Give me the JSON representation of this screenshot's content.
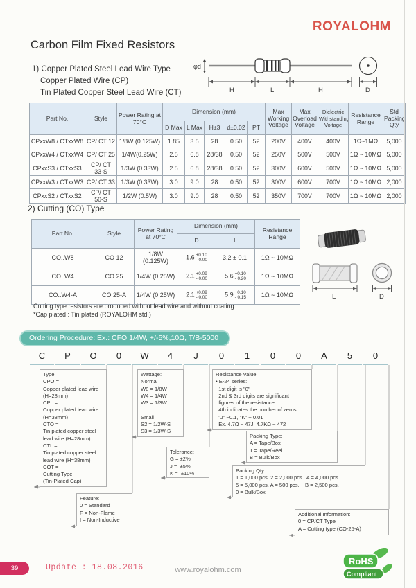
{
  "brand": {
    "logo": "ROYALOHM"
  },
  "page": {
    "title": "Carbon Film Fixed Resistors"
  },
  "section1": {
    "heading_line1": "1) Copper Plated Steel Lead Wire Type",
    "heading_line2": "Copper Plated Wire (CP)",
    "heading_line3": "Tin Plated Copper Steel Lead Wire (CT)",
    "diagram_labels": {
      "phi_d": "φd",
      "h_left": "H",
      "l": "L",
      "h_right": "H",
      "d": "D"
    }
  },
  "table1": {
    "headers": {
      "part": "Part No.",
      "style": "Style",
      "power": "Power Rating at 70°C",
      "dimension": "Dimension (mm)",
      "sub": [
        "D Max",
        "L Max",
        "H±3",
        "d±0.02",
        "PT"
      ],
      "max_working": "Max Working Voltage",
      "max_overload": "Max Overload Voltage",
      "dielectric": "Dielectric Withstanding Voltage",
      "resistance": "Resistance Range",
      "std_packing": "Std Packing Qty"
    },
    "rows": [
      [
        "CPxxW8 / CTxxW8",
        "CP/ CT 12",
        "1/8W (0.125W)",
        "1.85",
        "3.5",
        "28",
        "0.50",
        "52",
        "200V",
        "400V",
        "400V",
        "1Ω~1MΩ",
        "5,000"
      ],
      [
        "CPxxW4 / CTxxW4",
        "CP/ CT 25",
        "1/4W(0.25W)",
        "2.5",
        "6.8",
        "28/38",
        "0.50",
        "52",
        "250V",
        "500V",
        "500V",
        "1Ω ~ 10MΩ",
        "5,000"
      ],
      [
        "CPxxS3 / CTxxS3",
        "CP/ CT 33-S",
        "1/3W (0.33W)",
        "2.5",
        "6.8",
        "28/38",
        "0.50",
        "52",
        "300V",
        "600V",
        "500V",
        "1Ω ~ 10MΩ",
        "5,000"
      ],
      [
        "CPxxW3 / CTxxW3",
        "CP/ CT 33",
        "1/3W (0.33W)",
        "3.0",
        "9.0",
        "28",
        "0.50",
        "52",
        "300V",
        "600V",
        "700V",
        "1Ω ~ 10MΩ",
        "2,000"
      ],
      [
        "CPxxS2 / CTxxS2",
        "CP/ CT 50-S",
        "1/2W (0.5W)",
        "3.0",
        "9.0",
        "28",
        "0.50",
        "52",
        "350V",
        "700V",
        "700V",
        "1Ω ~ 10MΩ",
        "2,000"
      ]
    ]
  },
  "section2": {
    "heading": "2) Cutting (CO) Type",
    "notes": [
      "Cutting type resistors are produced without lead wire and without coating",
      "*Cap plated : Tin plated (ROYALOHM std.)"
    ],
    "drawing_labels": {
      "l": "L",
      "d": "D"
    }
  },
  "table2": {
    "headers": {
      "part": "Part No.",
      "style": "Style",
      "power": "Power Rating at 70°C",
      "dimension": "Dimension (mm)",
      "d": "D",
      "l": "L",
      "resistance": "Resistance Range"
    },
    "rows": [
      {
        "part": "CO..W8",
        "style": "CO 12",
        "power": "1/8W (0.125W)",
        "d_v": "1.6",
        "d_plus": "+0.10",
        "d_minus": "- 0.00",
        "l_v": "3.2 ± 0.1",
        "l_plus": "",
        "l_minus": "",
        "range": "1Ω ~ 10MΩ"
      },
      {
        "part": "CO..W4",
        "style": "CO 25",
        "power": "1/4W (0.25W)",
        "d_v": "2.1",
        "d_plus": "+0.09",
        "d_minus": "- 0.00",
        "l_v": "5.6",
        "l_plus": "+0.10",
        "l_minus": "- 0.20",
        "range": "1Ω ~ 10MΩ"
      },
      {
        "part": "CO..W4-A",
        "style": "CO 25-A",
        "power": "1/4W (0.25W)",
        "d_v": "2.1",
        "d_plus": "+0.09",
        "d_minus": "- 0.00",
        "l_v": "5.9",
        "l_plus": "+0.10",
        "l_minus": "- 0.15",
        "range": "1Ω ~ 10MΩ"
      }
    ]
  },
  "ordering": {
    "banner": "Ordering Procedure: Ex.: CFO 1/4W, +/-5%,10Ω, T/B-5000",
    "code": [
      "C",
      "P",
      "O",
      "0",
      "W",
      "4",
      "J",
      "0",
      "1",
      "0",
      "0",
      "A",
      "5",
      "0"
    ],
    "boxes": {
      "type_box": {
        "title": "Type:",
        "lines": [
          "CPO =",
          "Copper plated lead wire",
          "(H=28mm)",
          "CPL =",
          "Copper plated lead wire",
          "(H=38mm)",
          "CTO =",
          "Tin plated copper steel",
          "lead wire (H=28mm)",
          "CTL =",
          "Tin plated copper steel",
          "lead wire (H=38mm)",
          "COT =",
          "Cutting Type",
          "(Tin-Plated Cap)"
        ]
      },
      "wattage_box": {
        "title": "Wattage:",
        "lines": [
          "Normal",
          "W8 = 1/8W",
          "W4 = 1/4W",
          "W3 = 1/3W",
          " ",
          "Small",
          "S2 = 1/2W-S",
          "S3 = 1/3W-S"
        ]
      },
      "tolerance_box": {
        "title": "Tolerance:",
        "lines": [
          "G = ±2%",
          "J =  ±5%",
          "K =  ±10%"
        ]
      },
      "resistance_box": {
        "title": "Resistance Value:",
        "lines": [
          "• E-24 series:",
          "  1st digit is \"0\"",
          "  2nd & 3rd digits are significant",
          "  figures of the resistance",
          "  4th indicates the number of zeros",
          "  \"J\" ~0.1, \"K\" ~ 0.01",
          "  Ex. 4.7Ω ~ 47J, 4.7KΩ ~ 472"
        ]
      },
      "packing_type_box": {
        "title": "Packing Type:",
        "lines": [
          "A = Tape/Box",
          "T = Tape/Reel",
          "B = Bulk/Box"
        ]
      },
      "packing_qty_box": {
        "title": "Packing Qty:",
        "lines": [
          "1 = 1,000 pcs. 2 = 2,000 pcs.  4 = 4,000 pcs.",
          "5 = 5,000 pcs. A = 500 pcs.    B = 2,500 pcs.",
          "0 = Bulk/Box"
        ]
      },
      "feature_box": {
        "title": "Feature:",
        "lines": [
          "0 = Standard",
          "F = Non-Flame",
          "I = Non-Inductive"
        ]
      },
      "additional_box": {
        "title": "Additional Information:",
        "lines": [
          "0 = CP/CT Type",
          "A = Cutting type (CO-25-A)"
        ]
      }
    }
  },
  "footer": {
    "page_number": "39",
    "update": "Update : 18.08.2016",
    "website": "www.royalohm.com",
    "rohs_line1": "RoHS",
    "rohs_line2": "Compliant"
  },
  "colors": {
    "brand_red": "#d9544a",
    "banner_teal": "#5fb8aa",
    "table_header_blue": "#dfeaf4",
    "footer_pink": "#d2305f",
    "rohs_green": "#4db548"
  }
}
